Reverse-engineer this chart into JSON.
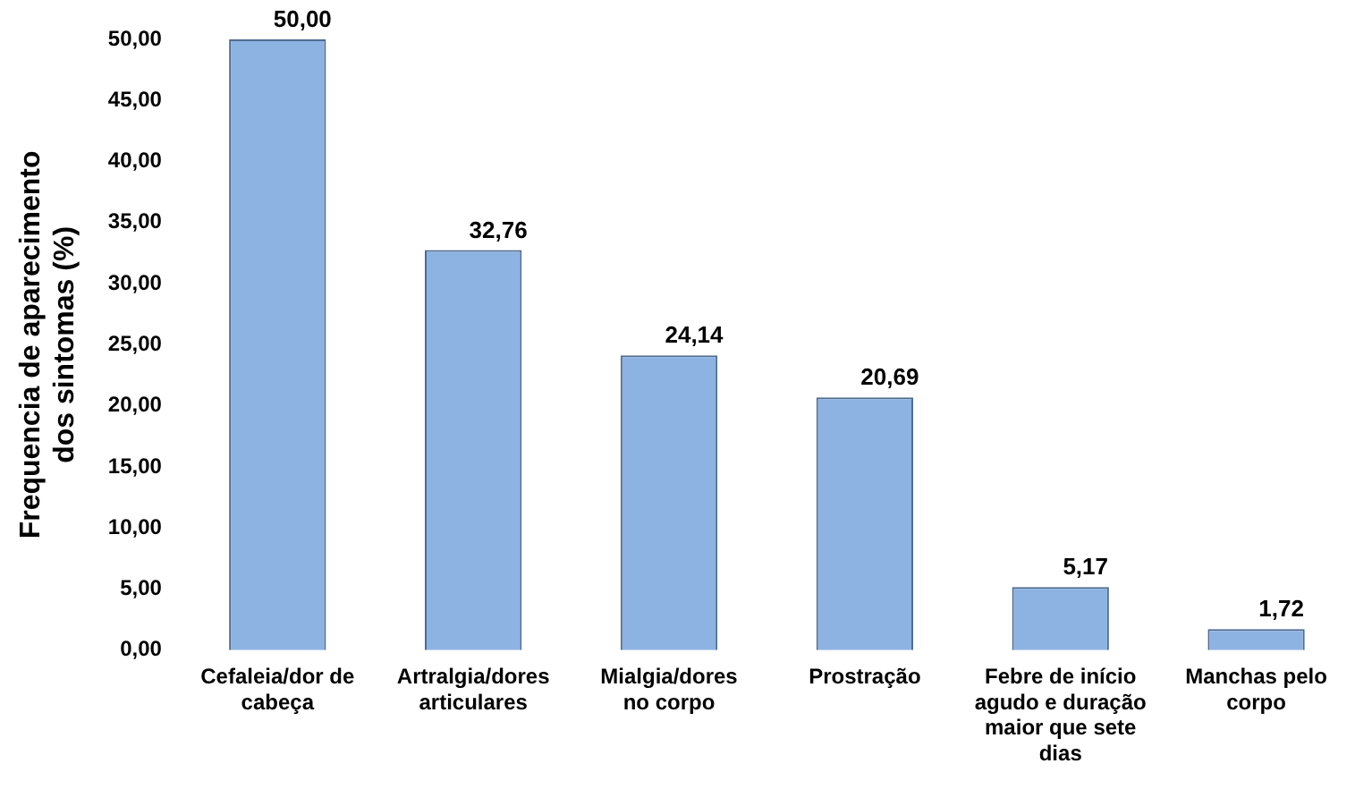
{
  "chart_data": {
    "type": "bar",
    "ylabel": "Frequencia de aparecimento dos sintomas (%)",
    "categories": [
      "Cefaleia/dor de cabeça",
      "Artralgia/dores articulares",
      "Mialgia/dores no corpo",
      "Prostração",
      "Febre de início agudo e duração maior que sete dias",
      "Manchas pelo corpo"
    ],
    "values": [
      50.0,
      32.76,
      24.14,
      20.69,
      5.17,
      1.72
    ],
    "value_labels": [
      "50,00",
      "32,76",
      "24,14",
      "20,69",
      "5,17",
      "1,72"
    ],
    "color": "#8db3e2",
    "ylim": [
      0,
      50
    ],
    "yticks": [
      {
        "value": 0,
        "label": "0,00"
      },
      {
        "value": 5,
        "label": "5,00"
      },
      {
        "value": 10,
        "label": "10,00"
      },
      {
        "value": 15,
        "label": "15,00"
      },
      {
        "value": 20,
        "label": "20,00"
      },
      {
        "value": 25,
        "label": "25,00"
      },
      {
        "value": 30,
        "label": "30,00"
      },
      {
        "value": 35,
        "label": "35,00"
      },
      {
        "value": 40,
        "label": "40,00"
      },
      {
        "value": 45,
        "label": "45,00"
      },
      {
        "value": 50,
        "label": "50,00"
      }
    ],
    "grid": false,
    "legend": false
  }
}
